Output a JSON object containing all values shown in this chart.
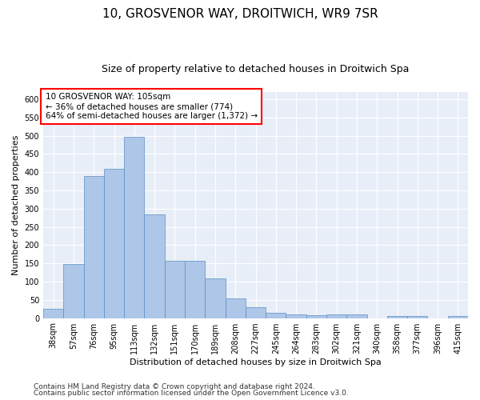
{
  "title": "10, GROSVENOR WAY, DROITWICH, WR9 7SR",
  "subtitle": "Size of property relative to detached houses in Droitwich Spa",
  "xlabel": "Distribution of detached houses by size in Droitwich Spa",
  "ylabel": "Number of detached properties",
  "categories": [
    "38sqm",
    "57sqm",
    "76sqm",
    "95sqm",
    "113sqm",
    "132sqm",
    "151sqm",
    "170sqm",
    "189sqm",
    "208sqm",
    "227sqm",
    "245sqm",
    "264sqm",
    "283sqm",
    "302sqm",
    "321sqm",
    "340sqm",
    "358sqm",
    "377sqm",
    "396sqm",
    "415sqm"
  ],
  "values": [
    25,
    148,
    390,
    410,
    497,
    285,
    158,
    158,
    108,
    54,
    30,
    15,
    10,
    8,
    10,
    10,
    0,
    5,
    5,
    0,
    5
  ],
  "bar_color": "#aec6e8",
  "bar_edge_color": "#5a8fc2",
  "background_color": "#e8eef8",
  "annotation_text_line1": "10 GROSVENOR WAY: 105sqm",
  "annotation_text_line2": "← 36% of detached houses are smaller (774)",
  "annotation_text_line3": "64% of semi-detached houses are larger (1,372) →",
  "ylim": [
    0,
    620
  ],
  "yticks": [
    0,
    50,
    100,
    150,
    200,
    250,
    300,
    350,
    400,
    450,
    500,
    550,
    600
  ],
  "footer_line1": "Contains HM Land Registry data © Crown copyright and database right 2024.",
  "footer_line2": "Contains public sector information licensed under the Open Government Licence v3.0.",
  "title_fontsize": 11,
  "subtitle_fontsize": 9,
  "axis_label_fontsize": 8,
  "tick_fontsize": 7,
  "annotation_fontsize": 7.5,
  "footer_fontsize": 6.5
}
